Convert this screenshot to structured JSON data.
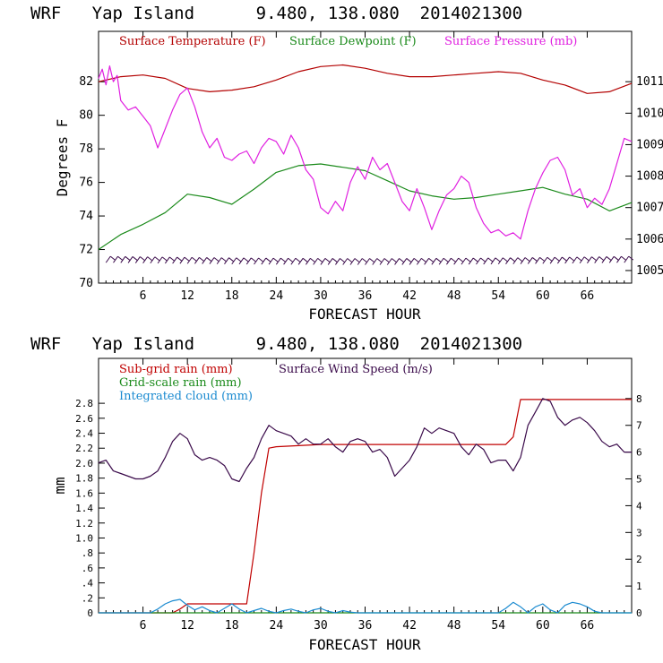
{
  "colors": {
    "temperature": "#b30000",
    "dewpoint": "#1a8a1a",
    "pressure": "#e020e0",
    "wind_barbs": "#3a0a4a",
    "subgrid_rain": "#c00000",
    "gridscale_rain": "#1a8a1a",
    "cloud": "#1a8ad0",
    "wind_speed": "#3a0a4a"
  },
  "chart_data": [
    {
      "type": "line",
      "title": "WRF   Yap Island      9.480, 138.080  2014021300",
      "xlabel": "FORECAST HOUR",
      "ylabel": "Degrees F",
      "xlim": [
        0,
        72
      ],
      "ylim": [
        70,
        85
      ],
      "y2lim": [
        1004.6,
        1012.6
      ],
      "x_ticks": [
        "6",
        "12",
        "18",
        "24",
        "30",
        "36",
        "42",
        "48",
        "54",
        "60",
        "66"
      ],
      "y_ticks": [
        "70",
        "72",
        "74",
        "76",
        "78",
        "80",
        "82"
      ],
      "y2_ticks": [
        "1005",
        "1006",
        "1007",
        "1008",
        "1009",
        "1010",
        "1011"
      ],
      "legend": [
        "Surface Temperature (F)",
        "Surface Dewpoint (F)",
        "Surface Pressure (mb)"
      ],
      "series": [
        {
          "name": "Surface Temperature (F)",
          "axis": "left",
          "x": [
            0,
            3,
            6,
            9,
            12,
            15,
            18,
            21,
            24,
            27,
            30,
            33,
            36,
            39,
            42,
            45,
            48,
            51,
            54,
            57,
            60,
            63,
            66,
            69,
            72
          ],
          "values": [
            82.0,
            82.3,
            82.4,
            82.2,
            81.6,
            81.4,
            81.5,
            81.7,
            82.1,
            82.6,
            82.9,
            83.0,
            82.8,
            82.5,
            82.3,
            82.3,
            82.4,
            82.5,
            82.6,
            82.5,
            82.1,
            81.8,
            81.3,
            81.4,
            81.9
          ]
        },
        {
          "name": "Surface Dewpoint (F)",
          "axis": "left",
          "x": [
            0,
            3,
            6,
            9,
            12,
            15,
            18,
            21,
            24,
            27,
            30,
            33,
            36,
            39,
            42,
            45,
            48,
            51,
            54,
            57,
            60,
            63,
            66,
            69,
            72
          ],
          "values": [
            72.0,
            72.9,
            73.5,
            74.2,
            75.3,
            75.1,
            74.7,
            75.6,
            76.6,
            77.0,
            77.1,
            76.9,
            76.7,
            76.1,
            75.5,
            75.2,
            75.0,
            75.1,
            75.3,
            75.5,
            75.7,
            75.3,
            75.0,
            74.3,
            74.8
          ]
        },
        {
          "name": "Surface Pressure (mb)",
          "axis": "right",
          "x": [
            0,
            0.5,
            1,
            1.5,
            2,
            2.5,
            3,
            4,
            5,
            6,
            7,
            8,
            9,
            10,
            11,
            12,
            13,
            14,
            15,
            16,
            17,
            18,
            19,
            20,
            21,
            22,
            23,
            24,
            25,
            26,
            27,
            28,
            29,
            30,
            31,
            32,
            33,
            34,
            35,
            36,
            37,
            38,
            39,
            40,
            41,
            42,
            43,
            44,
            45,
            46,
            47,
            48,
            49,
            50,
            51,
            52,
            53,
            54,
            55,
            56,
            57,
            58,
            59,
            60,
            61,
            62,
            63,
            64,
            65,
            66,
            67,
            68,
            69,
            70,
            71,
            72
          ],
          "values": [
            1011.1,
            1011.4,
            1010.9,
            1011.5,
            1011.0,
            1011.2,
            1010.4,
            1010.1,
            1010.2,
            1009.9,
            1009.6,
            1008.9,
            1009.5,
            1010.1,
            1010.6,
            1010.8,
            1010.2,
            1009.4,
            1008.9,
            1009.2,
            1008.6,
            1008.5,
            1008.7,
            1008.8,
            1008.4,
            1008.9,
            1009.2,
            1009.1,
            1008.7,
            1009.3,
            1008.9,
            1008.2,
            1007.9,
            1007.0,
            1006.8,
            1007.2,
            1006.9,
            1007.8,
            1008.3,
            1007.9,
            1008.6,
            1008.2,
            1008.4,
            1007.8,
            1007.2,
            1006.9,
            1007.6,
            1007.0,
            1006.3,
            1006.9,
            1007.4,
            1007.6,
            1008.0,
            1007.8,
            1007.0,
            1006.5,
            1006.2,
            1006.3,
            1006.1,
            1006.2,
            1006.0,
            1006.9,
            1007.6,
            1008.1,
            1008.5,
            1008.6,
            1008.2,
            1007.4,
            1007.6,
            1007.0,
            1007.3,
            1007.1,
            1007.6,
            1008.4,
            1009.2,
            1009.1
          ]
        }
      ]
    },
    {
      "type": "line",
      "title": "WRF   Yap Island      9.480, 138.080  2014021300",
      "xlabel": "FORECAST HOUR",
      "ylabel": "mm",
      "xlim": [
        0,
        72
      ],
      "ylim": [
        0,
        3.4
      ],
      "y2lim": [
        0,
        9.5
      ],
      "x_ticks": [
        "6",
        "12",
        "18",
        "24",
        "30",
        "36",
        "42",
        "48",
        "54",
        "60",
        "66"
      ],
      "y_ticks": [
        "0",
        ".2",
        ".4",
        ".6",
        ".8",
        "1.0",
        "1.2",
        "1.4",
        "1.6",
        "1.8",
        "2.0",
        "2.2",
        "2.4",
        "2.6",
        "2.8"
      ],
      "y2_ticks": [
        "0",
        "1",
        "2",
        "3",
        "4",
        "5",
        "6",
        "7",
        "8"
      ],
      "legend": [
        "Sub-grid rain (mm)",
        "Grid-scale rain (mm)",
        "Integrated cloud (mm)",
        "Surface Wind Speed (m/s)"
      ],
      "series": [
        {
          "name": "Sub-grid rain (mm)",
          "axis": "left",
          "x": [
            0,
            10,
            11,
            12,
            20,
            21,
            22,
            23,
            24,
            30,
            40,
            55,
            56,
            57,
            58,
            72
          ],
          "values": [
            0,
            0,
            0.05,
            0.12,
            0.12,
            0.8,
            1.6,
            2.2,
            2.22,
            2.25,
            2.25,
            2.25,
            2.35,
            2.85,
            2.85,
            2.85
          ]
        },
        {
          "name": "Grid-scale rain (mm)",
          "axis": "left",
          "x": [
            0,
            72
          ],
          "values": [
            0,
            0
          ]
        },
        {
          "name": "Integrated cloud (mm)",
          "axis": "left",
          "x": [
            0,
            7,
            8,
            9,
            10,
            11,
            12,
            13,
            14,
            15,
            16,
            17,
            18,
            19,
            20,
            21,
            22,
            23,
            24,
            25,
            26,
            27,
            28,
            29,
            30,
            31,
            32,
            33,
            34,
            35,
            36,
            54,
            55,
            56,
            57,
            58,
            59,
            60,
            61,
            62,
            63,
            64,
            65,
            66,
            67,
            68,
            72
          ],
          "values": [
            0,
            0,
            0.05,
            0.12,
            0.16,
            0.18,
            0.1,
            0.04,
            0.08,
            0.03,
            0.0,
            0.06,
            0.12,
            0.05,
            0.0,
            0.03,
            0.06,
            0.02,
            0.0,
            0.03,
            0.05,
            0.02,
            0.0,
            0.04,
            0.06,
            0.02,
            0.0,
            0.03,
            0.01,
            0.0,
            0.0,
            0.0,
            0.06,
            0.14,
            0.08,
            0.0,
            0.08,
            0.12,
            0.04,
            0.0,
            0.1,
            0.14,
            0.12,
            0.08,
            0.02,
            0.0,
            0.0
          ]
        },
        {
          "name": "Surface Wind Speed (m/s)",
          "axis": "right",
          "x": [
            0,
            1,
            2,
            3,
            4,
            5,
            6,
            7,
            8,
            9,
            10,
            11,
            12,
            13,
            14,
            15,
            16,
            17,
            18,
            19,
            20,
            21,
            22,
            23,
            24,
            25,
            26,
            27,
            28,
            29,
            30,
            31,
            32,
            33,
            34,
            35,
            36,
            37,
            38,
            39,
            40,
            41,
            42,
            43,
            44,
            45,
            46,
            47,
            48,
            49,
            50,
            51,
            52,
            53,
            54,
            55,
            56,
            57,
            58,
            59,
            60,
            61,
            62,
            63,
            64,
            65,
            66,
            67,
            68,
            69,
            70,
            71,
            72
          ],
          "values": [
            5.6,
            5.7,
            5.3,
            5.2,
            5.1,
            5.0,
            5.0,
            5.1,
            5.3,
            5.8,
            6.4,
            6.7,
            6.5,
            5.9,
            5.7,
            5.8,
            5.7,
            5.5,
            5.0,
            4.9,
            5.4,
            5.8,
            6.5,
            7.0,
            6.8,
            6.7,
            6.6,
            6.3,
            6.5,
            6.3,
            6.3,
            6.5,
            6.2,
            6.0,
            6.4,
            6.5,
            6.4,
            6.0,
            6.1,
            5.8,
            5.1,
            5.4,
            5.7,
            6.2,
            6.9,
            6.7,
            6.9,
            6.8,
            6.7,
            6.2,
            5.9,
            6.3,
            6.1,
            5.6,
            5.7,
            5.7,
            5.3,
            5.8,
            7.0,
            7.5,
            8.0,
            7.9,
            7.3,
            7.0,
            7.2,
            7.3,
            7.1,
            6.8,
            6.4,
            6.2,
            6.3,
            6.0,
            6.0
          ]
        }
      ]
    }
  ]
}
